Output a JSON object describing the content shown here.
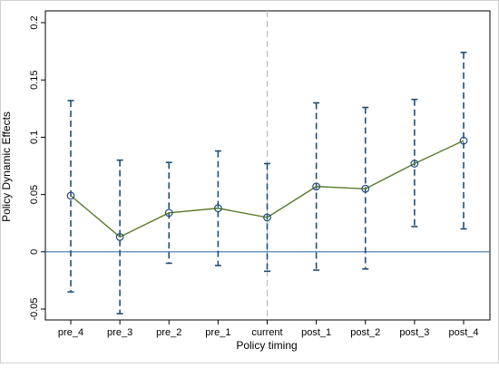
{
  "chart_data": {
    "type": "line",
    "title": "",
    "xlabel": "Policy timing",
    "ylabel": "Policy Dynamic Effects",
    "categories": [
      "pre_4",
      "pre_3",
      "pre_2",
      "pre_1",
      "current",
      "post_1",
      "post_2",
      "post_3",
      "post_4"
    ],
    "series": [
      {
        "values": [
          0.049,
          0.013,
          0.034,
          0.038,
          0.03,
          0.057,
          0.055,
          0.077,
          0.097
        ],
        "ci_lower": [
          -0.035,
          -0.054,
          -0.01,
          -0.012,
          -0.017,
          -0.016,
          -0.015,
          0.022,
          0.02
        ],
        "ci_upper": [
          0.132,
          0.08,
          0.078,
          0.088,
          0.077,
          0.13,
          0.126,
          0.133,
          0.174
        ]
      }
    ],
    "ylim": [
      -0.055,
      0.2
    ],
    "yticks": [
      -0.05,
      0,
      0.05,
      0.1,
      0.15,
      0.2
    ],
    "ytick_labels": [
      "-0.05",
      "0",
      "0.05",
      "0.1",
      "0.15",
      "0.2"
    ],
    "reference_lines": {
      "horizontal_at": 0,
      "vertical_at_category": "current"
    },
    "grid": false,
    "legend": "none",
    "colors": {
      "line": "#5b7a2a",
      "ci": "#1f4e79",
      "zero_line": "#3b75a6",
      "vline": "#b8b8b8",
      "marker": "#1f4e79",
      "axis": "#000000"
    }
  }
}
